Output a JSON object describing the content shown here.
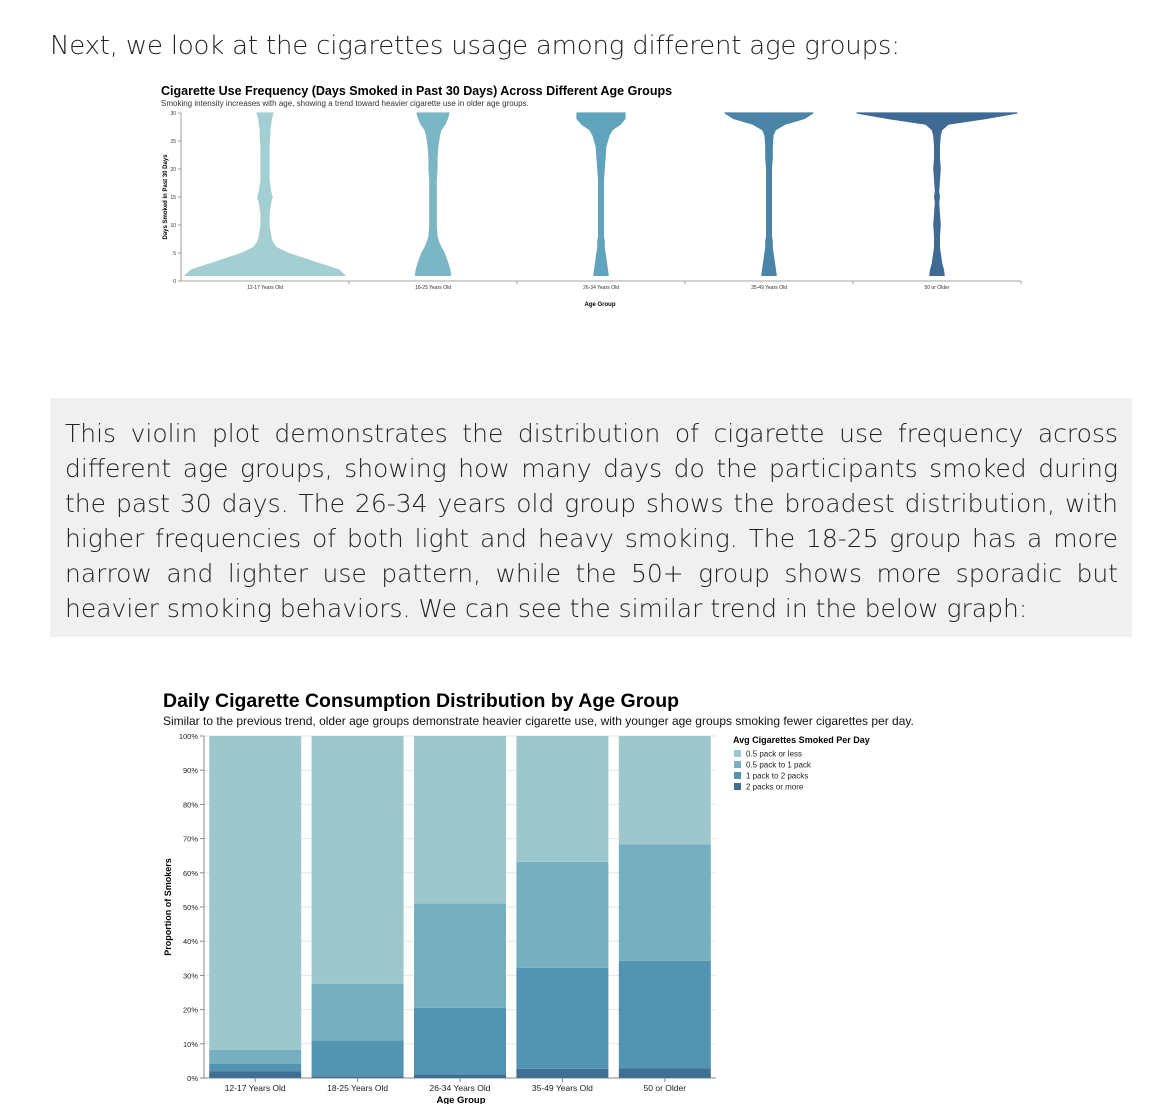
{
  "intro_text": "Next, we look at the cigarettes usage among different age groups:",
  "paragraph": "This violin plot demonstrates the distribution of cigarette use frequency across different age groups, showing how many days do the participants smoked during the past 30 days. The 26-34 years old group shows the broadest distribution, with higher frequencies of both light and heavy smoking. The 18-25 group has a more narrow and lighter use pattern, while the 50+ group shows more sporadic but heavier smoking behaviors. We can see the similar trend in the below graph:",
  "chart_data": [
    {
      "type": "violin",
      "title": "Cigarette Use Frequency (Days Smoked in Past 30 Days) Across Different Age Groups",
      "subtitle": "Smoking intensity increases with age, showing a trend toward heavier cigarette use in older age groups.",
      "xlabel": "Age Group",
      "ylabel": "Days Smoked in Past 30 Days",
      "ylim": [
        0,
        30
      ],
      "yticks": [
        0,
        5,
        10,
        15,
        20,
        25,
        30
      ],
      "categories": [
        "12-17 Years Old",
        "18-25 Years Old",
        "26-34 Years Old",
        "35-49 Years Old",
        "50 or Older"
      ],
      "colors": [
        "#a3cfd3",
        "#7ab6c3",
        "#5fa3bd",
        "#4a85a7",
        "#3e6a94"
      ],
      "density_y": [
        1,
        2,
        3,
        5,
        6,
        7,
        8,
        10,
        12,
        14,
        15,
        16,
        18,
        20,
        22,
        24,
        26,
        27,
        28,
        29,
        30
      ],
      "density": [
        [
          1.0,
          0.92,
          0.7,
          0.28,
          0.14,
          0.09,
          0.07,
          0.05,
          0.05,
          0.07,
          0.09,
          0.07,
          0.05,
          0.05,
          0.05,
          0.05,
          0.06,
          0.06,
          0.07,
          0.08,
          0.1
        ],
        [
          0.22,
          0.21,
          0.19,
          0.14,
          0.1,
          0.07,
          0.05,
          0.04,
          0.04,
          0.04,
          0.04,
          0.04,
          0.04,
          0.05,
          0.05,
          0.06,
          0.08,
          0.1,
          0.15,
          0.18,
          0.2
        ],
        [
          0.09,
          0.08,
          0.07,
          0.05,
          0.04,
          0.04,
          0.03,
          0.03,
          0.03,
          0.03,
          0.03,
          0.03,
          0.03,
          0.04,
          0.05,
          0.06,
          0.1,
          0.14,
          0.24,
          0.3,
          0.3
        ],
        [
          0.09,
          0.08,
          0.07,
          0.05,
          0.04,
          0.04,
          0.03,
          0.03,
          0.03,
          0.03,
          0.03,
          0.03,
          0.03,
          0.03,
          0.04,
          0.04,
          0.05,
          0.08,
          0.2,
          0.44,
          0.55
        ],
        [
          0.09,
          0.08,
          0.06,
          0.04,
          0.03,
          0.03,
          0.03,
          0.04,
          0.03,
          0.02,
          0.03,
          0.02,
          0.03,
          0.04,
          0.03,
          0.03,
          0.04,
          0.06,
          0.14,
          0.6,
          1.0
        ]
      ]
    },
    {
      "type": "bar",
      "stacked": true,
      "normalized": true,
      "title": "Daily Cigarette Consumption Distribution by Age Group",
      "subtitle": "Similar to the previous trend, older age groups demonstrate heavier cigarette use, with younger age groups smoking fewer cigarettes per day.",
      "xlabel": "Age Group",
      "ylabel": "Proportion of Smokers",
      "ylim": [
        0,
        100
      ],
      "yticks": [
        0,
        10,
        20,
        30,
        40,
        50,
        60,
        70,
        80,
        90,
        100
      ],
      "categories": [
        "12-17 Years Old",
        "18-25 Years Old",
        "26-34 Years Old",
        "35-49 Years Old",
        "50 or Older"
      ],
      "legend_title": "Avg Cigarettes Smoked Per Day",
      "legend_position": "top-right",
      "series": [
        {
          "name": "2 packs or more",
          "color": "#3f6f92",
          "values": [
            2.0,
            0.5,
            1.0,
            2.7,
            2.8
          ]
        },
        {
          "name": "1 pack to 2 packs",
          "color": "#5394b1",
          "values": [
            2.2,
            10.5,
            19.5,
            29.5,
            31.5
          ]
        },
        {
          "name": "0.5 pack to 1 pack",
          "color": "#76afbf",
          "values": [
            4.0,
            16.5,
            30.5,
            31.0,
            34.0
          ]
        },
        {
          "name": "0.5 pack or less",
          "color": "#9dc7cd",
          "values": [
            91.8,
            72.5,
            49.0,
            36.8,
            31.7
          ]
        }
      ],
      "legend_order": [
        "0.5 pack or less",
        "0.5 pack to 1 pack",
        "1 pack to 2 packs",
        "2 packs or more"
      ]
    }
  ]
}
